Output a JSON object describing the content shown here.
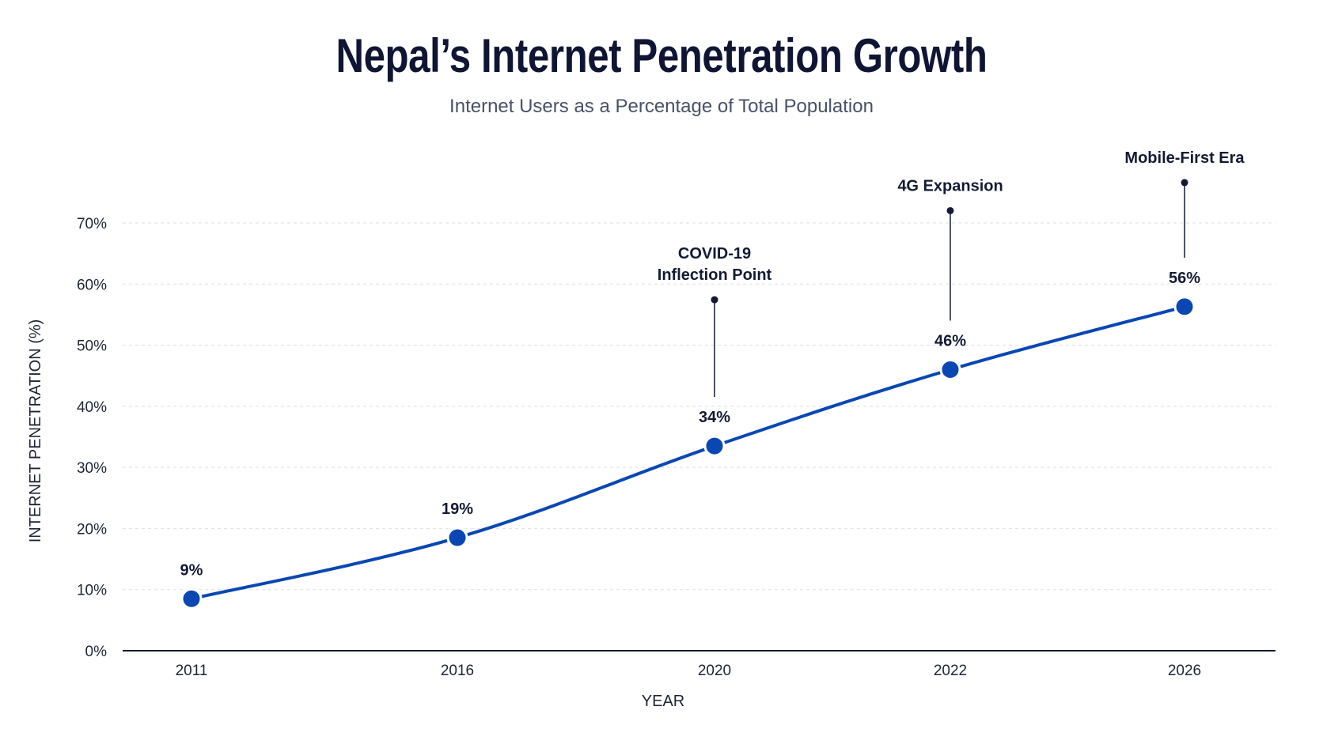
{
  "chart_data": {
    "type": "line",
    "title": "Nepal’s Internet Penetration Growth",
    "subtitle": "Internet Users as a Percentage of Total Population",
    "xlabel": "YEAR",
    "ylabel": "INTERNET PENETRATION (%)",
    "ylim": [
      0,
      70
    ],
    "yticks": [
      0,
      10,
      20,
      30,
      40,
      50,
      60,
      70
    ],
    "ytick_labels": [
      "0%",
      "10%",
      "20%",
      "30%",
      "40%",
      "50%",
      "60%",
      "70%"
    ],
    "categories": [
      "2011",
      "2016",
      "2020",
      "2022",
      "2026"
    ],
    "values": [
      8.5,
      18.5,
      33.5,
      46,
      56.3
    ],
    "data_labels": [
      "9%",
      "19%",
      "34%",
      "46%",
      "56%"
    ],
    "annotations": [
      {
        "category": "2020",
        "lines": [
          "COVID-19",
          "Inflection Point"
        ]
      },
      {
        "category": "2022",
        "lines": [
          "4G Expansion"
        ]
      },
      {
        "category": "2026",
        "lines": [
          "Mobile-First Era"
        ]
      }
    ],
    "grid": true,
    "line_color": "#0a47b3",
    "marker_color": "#0a47b3",
    "axis_color": "#0f1533"
  }
}
